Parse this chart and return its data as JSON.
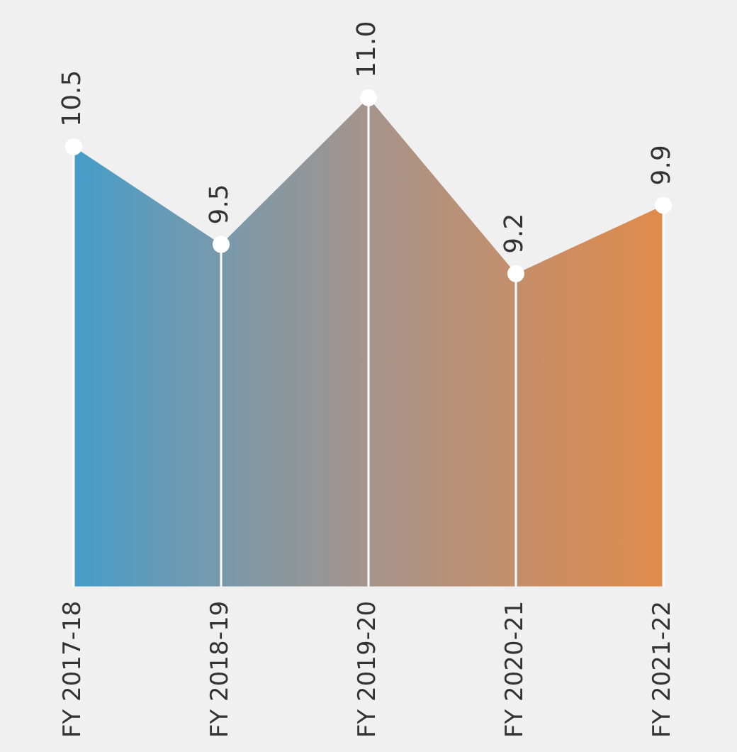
{
  "chart_data": {
    "type": "area",
    "categories": [
      "FY 2017-18",
      "FY 2018-19",
      "FY 2019-20",
      "FY 2020-21",
      "FY 2021-22"
    ],
    "values": [
      10.5,
      9.5,
      11.0,
      9.2,
      9.9
    ],
    "value_labels": [
      "10.5",
      "9.5",
      "11.0",
      "9.2",
      "9.9"
    ],
    "colors": [
      "#2a9fd6",
      "#6d9ab3",
      "#a5948b",
      "#cc8d63",
      "#ed8a3a"
    ],
    "tick_labels": "x",
    "legend": false,
    "marker": "circle"
  }
}
